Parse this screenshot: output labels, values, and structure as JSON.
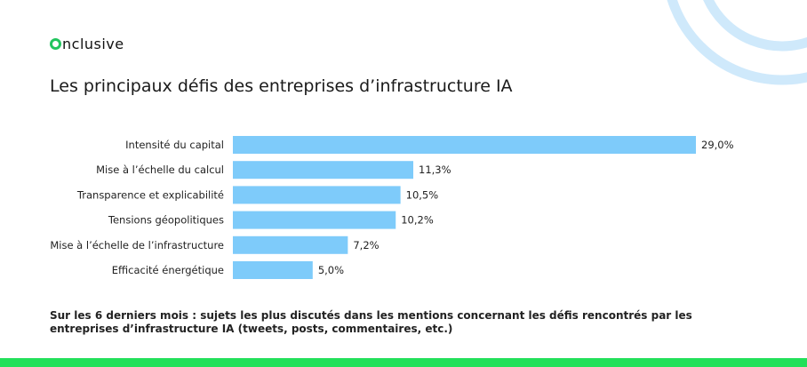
{
  "brand": {
    "name": "nclusive",
    "accent_color": "#22c55e"
  },
  "title": "Les principaux défis des entreprises d’infrastructure IA",
  "chart_data": {
    "type": "bar",
    "orientation": "horizontal",
    "categories": [
      "Intensité du capital",
      "Mise à l’échelle du calcul",
      "Transparence et explicabilité",
      "Tensions géopolitiques",
      "Mise à l’échelle de l’infrastructure",
      "Efficacité énergétique"
    ],
    "values": [
      29.0,
      11.3,
      10.5,
      10.2,
      7.2,
      5.0
    ],
    "value_labels": [
      "29,0%",
      "11,3%",
      "10,5%",
      "10,2%",
      "7,2%",
      "5,0%"
    ],
    "bar_color": "#7ecbfa",
    "xlim": [
      0,
      29.0
    ],
    "grid": false,
    "legend": "none"
  },
  "footnote": "Sur les 6 derniers mois : sujets les plus discutés dans les mentions concernant les défis rencontrés par les entreprises d’infrastructure IA (tweets, posts, commentaires, etc.)",
  "colors": {
    "decoration_arc": "#cfe9fb",
    "bottom_bar": "#22e05a"
  }
}
